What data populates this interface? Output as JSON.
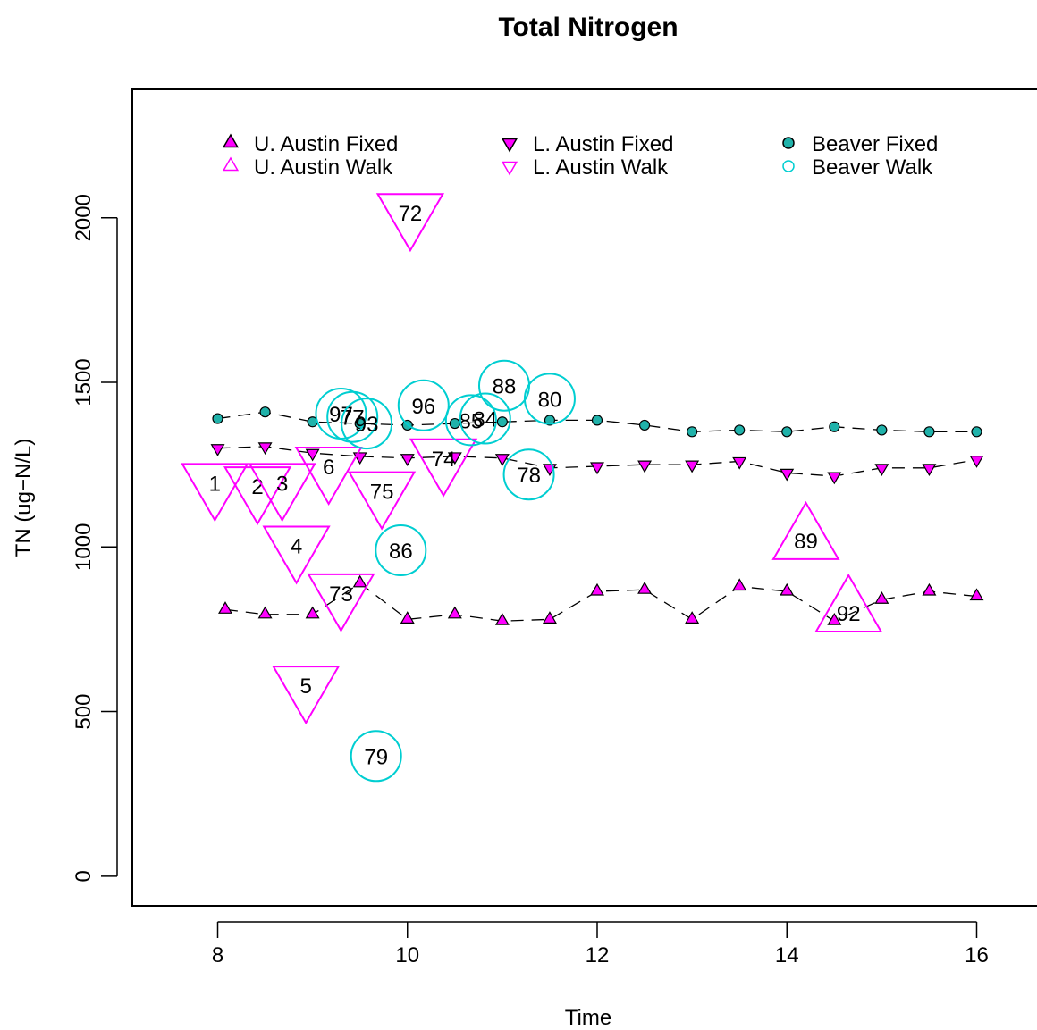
{
  "chart_data": {
    "type": "scatter",
    "title": "Total Nitrogen",
    "xlabel": "Time",
    "ylabel": "TN (ug−N/L)",
    "xlim": [
      7.1,
      16.9
    ],
    "ylim": [
      -90,
      2390
    ],
    "xticks": [
      "8",
      "10",
      "12",
      "14",
      "16"
    ],
    "yticks": [
      "0",
      "500",
      "1000",
      "1500",
      "2000"
    ],
    "legend": {
      "placement": "top",
      "entries": [
        {
          "label": "U. Austin Fixed",
          "marker": "triangle-up",
          "filled": true,
          "color": "#ff00ff"
        },
        {
          "label": "U. Austin Walk",
          "marker": "triangle-up",
          "filled": false,
          "color": "#ff00ff"
        },
        {
          "label": "L. Austin Fixed",
          "marker": "triangle-down",
          "filled": true,
          "color": "#ff00ff"
        },
        {
          "label": "L. Austin Walk",
          "marker": "triangle-down",
          "filled": false,
          "color": "#ff00ff"
        },
        {
          "label": "Beaver Fixed",
          "marker": "circle",
          "filled": true,
          "color": "#20b2aa"
        },
        {
          "label": "Beaver Walk",
          "marker": "circle",
          "filled": false,
          "color": "#00ced1"
        }
      ]
    },
    "series": [
      {
        "name": "U. Austin Fixed",
        "marker": "triangle-up",
        "filled": true,
        "line": "dashed",
        "x": [
          8.08,
          8.5,
          9.0,
          9.5,
          10.0,
          10.5,
          11.0,
          11.5,
          12.0,
          12.5,
          13.0,
          13.5,
          14.0,
          14.5,
          15.0,
          15.5,
          16.0
        ],
        "y": [
          810,
          795,
          795,
          890,
          780,
          795,
          775,
          780,
          865,
          870,
          780,
          880,
          865,
          775,
          840,
          865,
          850
        ]
      },
      {
        "name": "L. Austin Fixed",
        "marker": "triangle-down",
        "filled": true,
        "line": "dashed",
        "x": [
          8.0,
          8.5,
          9.0,
          9.5,
          10.0,
          10.5,
          11.0,
          11.5,
          12.0,
          12.5,
          13.0,
          13.5,
          14.0,
          14.5,
          15.0,
          15.5,
          16.0
        ],
        "y": [
          1300,
          1305,
          1285,
          1275,
          1270,
          1275,
          1270,
          1240,
          1245,
          1250,
          1250,
          1260,
          1225,
          1215,
          1240,
          1240,
          1265
        ]
      },
      {
        "name": "Beaver Fixed",
        "marker": "circle",
        "filled": true,
        "line": "dashed",
        "x": [
          8.0,
          8.5,
          9.0,
          9.5,
          10.0,
          10.5,
          11.0,
          11.5,
          12.0,
          12.5,
          13.0,
          13.5,
          14.0,
          14.5,
          15.0,
          15.5,
          16.0
        ],
        "y": [
          1390,
          1410,
          1380,
          1375,
          1370,
          1375,
          1380,
          1385,
          1385,
          1370,
          1350,
          1355,
          1350,
          1365,
          1355,
          1350,
          1350
        ]
      },
      {
        "name": "U. Austin Walk",
        "marker": "triangle-up",
        "filled": false,
        "points": [
          {
            "label": "89",
            "x": 14.2,
            "y": 1020
          },
          {
            "label": "92",
            "x": 14.65,
            "y": 800
          }
        ]
      },
      {
        "name": "L. Austin Walk",
        "marker": "triangle-down",
        "filled": false,
        "points": [
          {
            "label": "1",
            "x": 7.97,
            "y": 1195
          },
          {
            "label": "2",
            "x": 8.42,
            "y": 1185
          },
          {
            "label": "3",
            "x": 8.68,
            "y": 1195
          },
          {
            "label": "6",
            "x": 9.17,
            "y": 1245
          },
          {
            "label": "4",
            "x": 8.83,
            "y": 1005
          },
          {
            "label": "73",
            "x": 9.3,
            "y": 860
          },
          {
            "label": "5",
            "x": 8.93,
            "y": 580
          },
          {
            "label": "72",
            "x": 10.03,
            "y": 2015
          },
          {
            "label": "75",
            "x": 9.73,
            "y": 1170
          },
          {
            "label": "74",
            "x": 10.38,
            "y": 1270
          }
        ]
      },
      {
        "name": "Beaver Walk",
        "marker": "circle",
        "filled": false,
        "points": [
          {
            "label": "97",
            "x": 9.3,
            "y": 1405
          },
          {
            "label": "77",
            "x": 9.42,
            "y": 1395
          },
          {
            "label": "93",
            "x": 9.57,
            "y": 1375
          },
          {
            "label": "96",
            "x": 10.17,
            "y": 1430
          },
          {
            "label": "85",
            "x": 10.67,
            "y": 1385
          },
          {
            "label": "84",
            "x": 10.82,
            "y": 1390
          },
          {
            "label": "88",
            "x": 11.02,
            "y": 1490
          },
          {
            "label": "80",
            "x": 11.5,
            "y": 1450
          },
          {
            "label": "78",
            "x": 11.28,
            "y": 1220
          },
          {
            "label": "86",
            "x": 9.93,
            "y": 990
          },
          {
            "label": "79",
            "x": 9.67,
            "y": 365
          }
        ]
      }
    ]
  }
}
